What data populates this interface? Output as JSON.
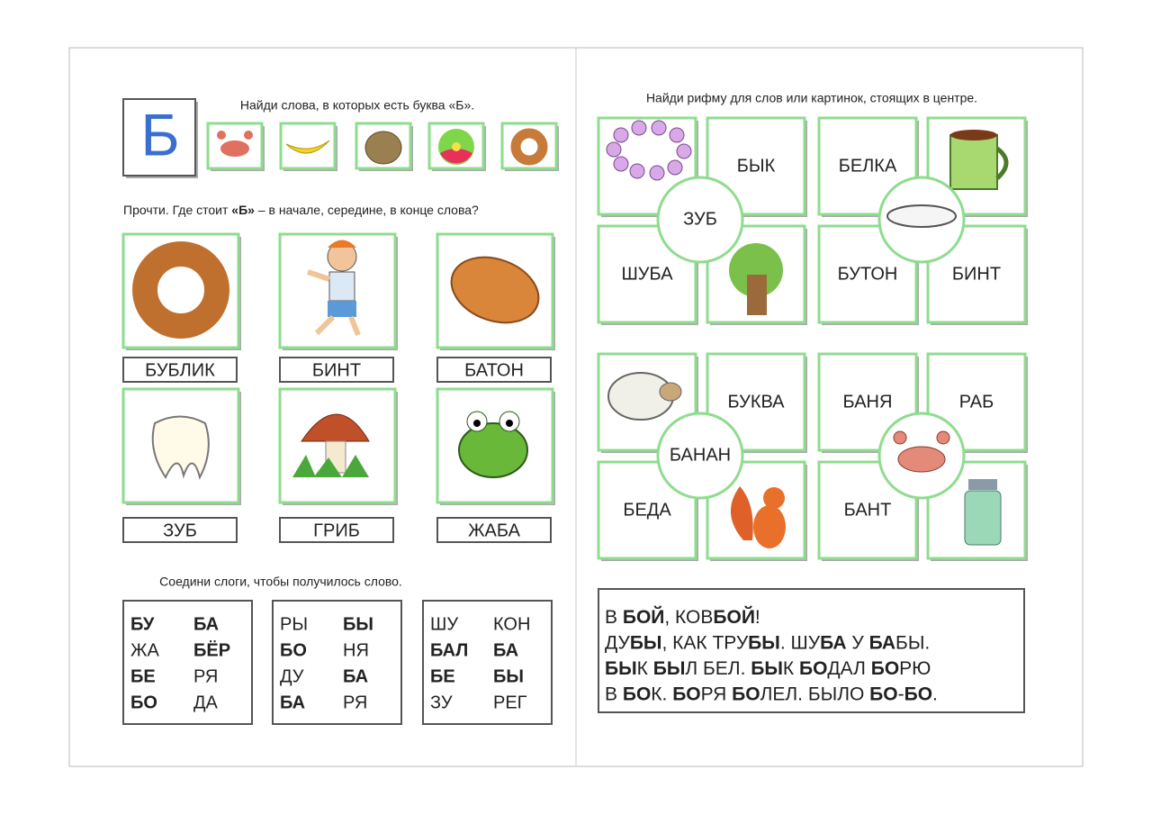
{
  "left_page": {
    "letter": "Б",
    "task1": "Найди слова, в которых есть буква «Б».",
    "task2": [
      {
        "text": "Прочти. Где стоит ",
        "bold": false
      },
      {
        "text": "«Б»",
        "bold": true
      },
      {
        "text": " – в начале, середине, в конце слова?",
        "bold": false
      }
    ],
    "words": [
      "БУБЛИК",
      "БИНТ",
      "БАТОН",
      "ЗУБ",
      "ГРИБ",
      "ЖАБА"
    ],
    "task3": "Соедини слоги, чтобы получилось слово.",
    "syllable_boxes": [
      [
        [
          {
            "text": "БУ",
            "bold": true
          },
          {
            "text": "БА",
            "bold": true
          }
        ],
        [
          {
            "text": "ЖА",
            "bold": false
          },
          {
            "text": "БЁР",
            "bold": true
          }
        ],
        [
          {
            "text": "БЕ",
            "bold": true
          },
          {
            "text": "РЯ",
            "bold": false
          }
        ],
        [
          {
            "text": "БО",
            "bold": true
          },
          {
            "text": "ДА",
            "bold": false
          }
        ]
      ],
      [
        [
          {
            "text": "РЫ",
            "bold": false
          },
          {
            "text": "БЫ",
            "bold": true
          }
        ],
        [
          {
            "text": "БО",
            "bold": true
          },
          {
            "text": "НЯ",
            "bold": false
          }
        ],
        [
          {
            "text": "ДУ",
            "bold": false
          },
          {
            "text": "БА",
            "bold": true
          }
        ],
        [
          {
            "text": "БА",
            "bold": true
          },
          {
            "text": "РЯ",
            "bold": false
          }
        ]
      ],
      [
        [
          {
            "text": "ШУ",
            "bold": false
          },
          {
            "text": "КОН",
            "bold": false
          }
        ],
        [
          {
            "text": "БАЛ",
            "bold": true
          },
          {
            "text": "БА",
            "bold": true
          }
        ],
        [
          {
            "text": "БЕ",
            "bold": true
          },
          {
            "text": "БЫ",
            "bold": true
          }
        ],
        [
          {
            "text": "ЗУ",
            "bold": false
          },
          {
            "text": "РЕГ",
            "bold": false
          }
        ]
      ]
    ]
  },
  "right_page": {
    "task": "Найди рифму для слов или картинок, стоящих в центре.",
    "rhyme_groups": [
      {
        "cells": [
          null,
          "БЫК",
          "БЕЛКА",
          null,
          "ШУБА",
          null,
          "БУТОН",
          "БИНТ"
        ],
        "centers": [
          "ЗУБ",
          null
        ]
      },
      {
        "cells": [
          null,
          "БУКВА",
          "БАНЯ",
          "РАБ",
          "БЕДА",
          null,
          "БАНТ",
          null
        ],
        "centers": [
          "БАНАН",
          null
        ]
      }
    ],
    "poem": [
      [
        {
          "text": "В ",
          "bold": false
        },
        {
          "text": "БОЙ",
          "bold": true
        },
        {
          "text": ", КОВ",
          "bold": false
        },
        {
          "text": "БОЙ",
          "bold": true
        },
        {
          "text": "!",
          "bold": false
        }
      ],
      [
        {
          "text": "ДУ",
          "bold": false
        },
        {
          "text": "БЫ",
          "bold": true
        },
        {
          "text": ", КАК ТРУ",
          "bold": false
        },
        {
          "text": "БЫ",
          "bold": true
        },
        {
          "text": ".  ШУ",
          "bold": false
        },
        {
          "text": "БА",
          "bold": true
        },
        {
          "text": " У ",
          "bold": false
        },
        {
          "text": "БА",
          "bold": true
        },
        {
          "text": "БЫ.",
          "bold": false
        }
      ],
      [
        {
          "text": "БЫ",
          "bold": true
        },
        {
          "text": "К ",
          "bold": false
        },
        {
          "text": "БЫ",
          "bold": true
        },
        {
          "text": "Л БЕЛ. ",
          "bold": false
        },
        {
          "text": "БЫ",
          "bold": true
        },
        {
          "text": "К ",
          "bold": false
        },
        {
          "text": "БО",
          "bold": true
        },
        {
          "text": "ДАЛ ",
          "bold": false
        },
        {
          "text": "БО",
          "bold": true
        },
        {
          "text": "РЮ",
          "bold": false
        }
      ],
      [
        {
          "text": "В ",
          "bold": false
        },
        {
          "text": "БО",
          "bold": true
        },
        {
          "text": "К. ",
          "bold": false
        },
        {
          "text": "БО",
          "bold": true
        },
        {
          "text": "РЯ ",
          "bold": false
        },
        {
          "text": "БО",
          "bold": true
        },
        {
          "text": "ЛЕЛ. БЫЛО ",
          "bold": false
        },
        {
          "text": "БО",
          "bold": true
        },
        {
          "text": "-",
          "bold": false
        },
        {
          "text": "БО",
          "bold": true
        },
        {
          "text": ".",
          "bold": false
        }
      ]
    ]
  }
}
